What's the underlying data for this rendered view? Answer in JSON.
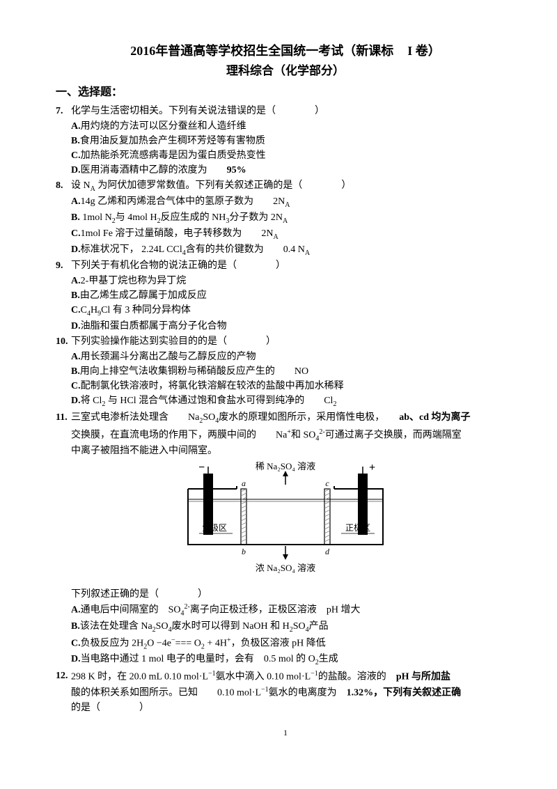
{
  "title": {
    "year": "2016",
    "t1": "年普通高等学校招生全国统一考试（新课标",
    "vol": "I 卷）",
    "sub": "理科综合（化学部分）"
  },
  "sectionH": "一、选择题：",
  "q7": {
    "num": "7.",
    "stem": "化学与生活密切相关。下列有关说法错误的是（　　　　）",
    "A": "用灼烧的方法可以区分蚕丝和人造纤维",
    "B": "食用油反复加热会产生稠环芳烃等有害物质",
    "C": "加热能杀死流感病毒是因为蛋白质受热变性",
    "D_1": "医用消毒酒精中乙醇的浓度为",
    "D_2": "95%"
  },
  "q8": {
    "num": "8.",
    "stem_1": "设 N",
    "stem_A": "A",
    "stem_2": " 为阿伏加德罗常数值。下列有关叙述正确的是（　　　　）",
    "A_1": "14g 乙烯和丙烯混合气体中的氢原子数为",
    "A_2": "2N",
    "A_3": "A",
    "B_1": "1mol  N",
    "B_2": "2",
    "B_3": "与  4mol  H",
    "B_4": "2",
    "B_5": "反应生成的   NH",
    "B_6": "3",
    "B_7": "分子数为  2N",
    "B_8": "A",
    "C_1": "1mol  Fe 溶于过量硝酸，电子转移数为",
    "C_2": "2N",
    "C_3": "A",
    "D_1": "标准状况下，  2.24L  CCl",
    "D_2": "4",
    "D_3": "含有的共价键数为",
    "D_4": "0.4 N",
    "D_5": "A"
  },
  "q9": {
    "num": "9.",
    "stem": "下列关于有机化合物的说法正确的是（　　　　）",
    "A": "2-甲基丁烷也称为异丁烷",
    "B": "由乙烯生成乙醇属于加成反应",
    "C_1": "C",
    "C_2": "4",
    "C_3": "H",
    "C_4": "9",
    "C_5": "Cl 有  3 种同分异构体",
    "D": "油脂和蛋白质都属于高分子化合物"
  },
  "q10": {
    "num": "10.",
    "stem": "下列实验操作能达到实验目的的是（　　　　）",
    "A": "用长颈漏斗分离出乙酸与乙醇反应的产物",
    "B_1": "用向上排空气法收集铜粉与稀硝酸反应产生的",
    "B_2": "NO",
    "C": "配制氯化铁溶液时，将氯化铁溶解在较浓的盐酸中再加水稀释",
    "D_1": "将 Cl",
    "D_2": "2",
    "D_3": " 与 HCl  混合气体通过饱和食盐水可得到纯净的",
    "D_4": "Cl",
    "D_5": "2"
  },
  "q11": {
    "num": "11.",
    "s1": "三室式电渗析法处理含",
    "s2": "Na",
    "s3": "2",
    "s4": "SO",
    "s5": "4",
    "s6": "废水的原理如图所示，采用惰性电极，",
    "s7": "ab、cd 均为离子",
    "l2_1": "交换膜，在直流电场的作用下，两膜中间的",
    "l2_2": "Na",
    "l2_3": "+",
    "l2_4": "和 SO",
    "l2_5": "4",
    "l2_6": "2-",
    "l2_7": "可通过离子交换膜，而两端隔室",
    "l3": "中离子被阻挡不能进入中间隔室。",
    "after": "下列叙述正确的是（　　　　）",
    "A_1": "通电后中间隔室的",
    "A_2": "SO",
    "A_3": "4",
    "A_4": "2-",
    "A_5": "离子向正极迁移，正极区溶液",
    "A_6": "pH 增大",
    "B_1": "该法在处理含   Na",
    "B_2": "2",
    "B_3": "SO",
    "B_4": "4",
    "B_5": "废水时可以得到  NaOH  和 H",
    "B_6": "2",
    "B_7": "SO",
    "B_8": "4",
    "B_9": "产品",
    "C_1": "负极反应为  2H",
    "C_2": "2",
    "C_3": "O −4e",
    "C_4": "−",
    "C_5": "=== O",
    "C_6": "2",
    "C_7": " + 4H",
    "C_8": "+",
    "C_9": "，负极区溶液   pH 降低",
    "D_1": "当电路中通过   1 mol  电子的电量时，会有",
    "D_2": "0.5  mol 的 O",
    "D_3": "2",
    "D_4": "生成"
  },
  "q12": {
    "num": "12.",
    "s1": "298 K 时，在  20.0 mL  0.10 mol·L",
    "s2": "−1",
    "s3": "氨水中滴入  0.10 mol·L",
    "s4": "−1",
    "s5": "的盐酸。溶液的",
    "s6": "pH 与所加盐",
    "l2_1": "酸的体积关系如图所示。已知",
    "l2_2": "0.10 mol·L",
    "l2_3": "−1",
    "l2_4": "氨水的电离度为",
    "l2_5": "1.32%，下列有关叙述正确",
    "l3": "的是（　　　　）"
  },
  "diagram": {
    "topLabel": "稀 Na₂SO₄ 溶液",
    "botLabel": "浓 Na₂SO₄ 溶液",
    "negRegion": "负极区",
    "posRegion": "正极区",
    "a": "a",
    "b": "b",
    "c": "c",
    "d": "d",
    "minus": "−",
    "plus": "+",
    "bg": "#ffffff",
    "line": "#000000",
    "fillElectrode": "#000000",
    "hatch": "#888888"
  },
  "pageNumber": "1"
}
